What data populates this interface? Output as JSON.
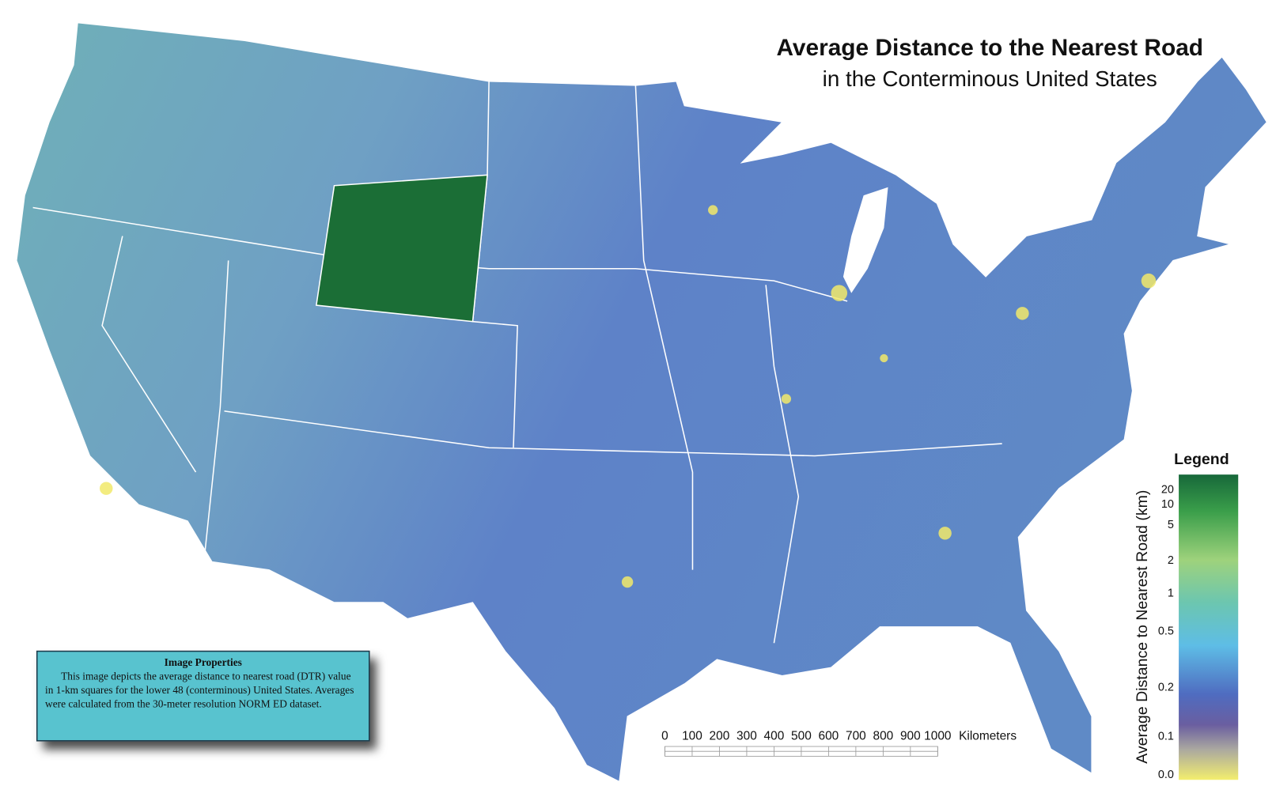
{
  "title": "Average Distance to the Nearest Road",
  "subtitle": "in the Conterminous United States",
  "legend": {
    "title": "Legend",
    "axis_label": "Average Distance to Nearest Road (km)",
    "ticks": [
      "20",
      "10",
      "5",
      "2",
      "1",
      "0.5",
      "0.2",
      "0.1",
      "0.0"
    ]
  },
  "scale_bar": {
    "ticks": [
      0,
      100,
      200,
      300,
      400,
      500,
      600,
      700,
      800,
      900,
      1000
    ],
    "unit": "Kilometers"
  },
  "info_box": {
    "title": "Image Properties",
    "text": "This image depicts the average distance to nearest road (DTR) value in 1-km squares for the lower 48 (conterminous) United States.  Averages were calculated from the 30-meter resolution NORM ED dataset."
  }
}
